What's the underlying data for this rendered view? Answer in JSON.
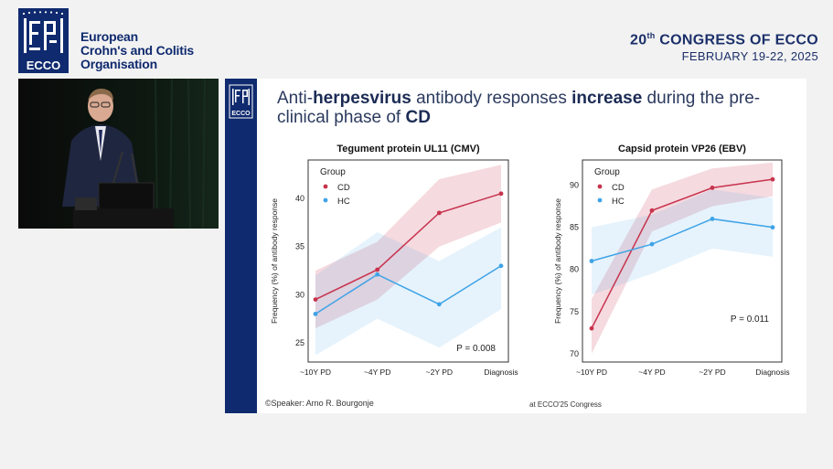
{
  "header": {
    "org_line1": "European",
    "org_line2": "Crohn's and Colitis",
    "org_line3": "Organisation",
    "logo_text": "ECCO",
    "congress_number": "20",
    "congress_suffix": "th",
    "congress_rest": " CONGRESS OF ECCO",
    "congress_dates": "FEBRUARY 19-22, 2025"
  },
  "slide": {
    "logo_text": "ECCO",
    "title_parts": [
      {
        "text": "Anti-",
        "bold": false
      },
      {
        "text": "herpesvirus",
        "bold": true
      },
      {
        "text": " antibody responses ",
        "bold": false
      },
      {
        "text": "increase",
        "bold": true
      },
      {
        "text": " during the pre-clinical phase of ",
        "bold": false
      },
      {
        "text": "CD",
        "bold": true
      }
    ],
    "footer_speaker_label": "©Speaker:",
    "footer_speaker_name": "Arno R. Bourgonje",
    "footer_congress": "at ECCO'25 Congress"
  },
  "colors": {
    "brand_navy": "#0f2a6e",
    "cd": "#c7334d",
    "hc": "#3fa3e6"
  },
  "chart_data": [
    {
      "type": "line",
      "title": "Tegument protein UL11 (CMV)",
      "ylabel": "Frequency (%) of antibody response",
      "categories": [
        "~10Y PD",
        "~4Y PD",
        "~2Y PD",
        "Diagnosis"
      ],
      "ylim": [
        23,
        44
      ],
      "yticks": [
        25,
        30,
        35,
        40
      ],
      "legend_title": "Group",
      "legend_position": "top-left",
      "annotation": "P = 0.008",
      "series": [
        {
          "name": "CD",
          "values": [
            29.5,
            32.6,
            38.5,
            40.5
          ],
          "band_low": [
            26.5,
            29.5,
            35.0,
            37.5
          ],
          "band_high": [
            32.5,
            35.5,
            42.0,
            43.5
          ]
        },
        {
          "name": "HC",
          "values": [
            28.0,
            32.1,
            29.0,
            33.0
          ],
          "band_low": [
            23.7,
            27.5,
            24.5,
            28.5
          ],
          "band_high": [
            32.0,
            36.5,
            33.5,
            37.0
          ]
        }
      ]
    },
    {
      "type": "line",
      "title": "Capsid protein VP26 (EBV)",
      "ylabel": "Frequency (%) of antibody response",
      "categories": [
        "~10Y PD",
        "~4Y PD",
        "~2Y PD",
        "Diagnosis"
      ],
      "ylim": [
        69,
        93
      ],
      "yticks": [
        70,
        75,
        80,
        85,
        90
      ],
      "legend_title": "Group",
      "legend_position": "top-left",
      "annotation": "P = 0.011",
      "series": [
        {
          "name": "CD",
          "values": [
            73.0,
            87.0,
            89.7,
            90.7
          ],
          "band_low": [
            70.0,
            84.5,
            87.5,
            88.7
          ],
          "band_high": [
            76.5,
            89.5,
            92.0,
            92.7
          ]
        },
        {
          "name": "HC",
          "values": [
            81.0,
            83.0,
            86.0,
            85.0
          ],
          "band_low": [
            77.0,
            79.5,
            82.5,
            81.5
          ],
          "band_high": [
            85.0,
            86.5,
            89.5,
            88.5
          ]
        }
      ]
    }
  ]
}
